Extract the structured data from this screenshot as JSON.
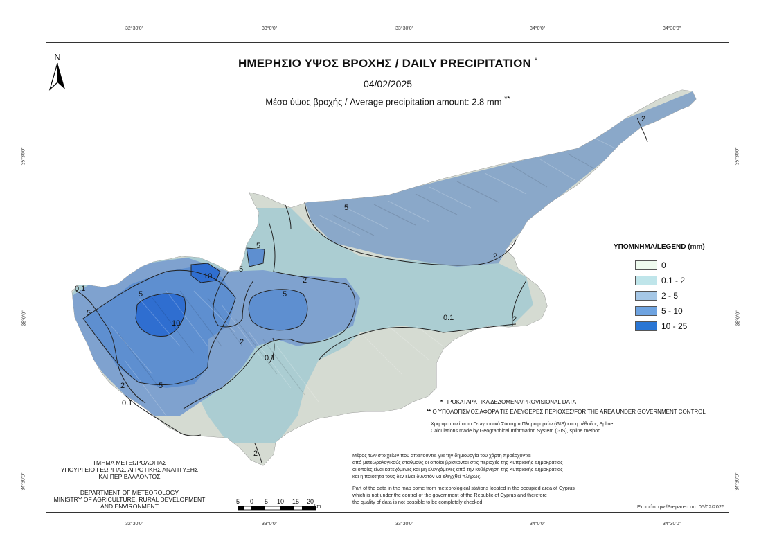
{
  "map": {
    "title": "ΗΜΕΡΗΣΙΟ ΥΨΟΣ ΒΡΟΧΗΣ / DAILY PRECIPITATION",
    "title_mark": "*",
    "date": "04/02/2025",
    "average": "Μέσο ύψος βροχής / Average precipitation amount: 2.8 mm",
    "average_mark": "**",
    "north_label": "N"
  },
  "ticks": {
    "top": [
      "32°30'0\"",
      "33°0'0\"",
      "33°30'0\"",
      "34°0'0\"",
      "34°30'0\""
    ],
    "bottom": [
      "32°30'0\"",
      "33°0'0\"",
      "33°30'0\"",
      "34°0'0\"",
      "34°30'0\""
    ],
    "left": [
      "35°30'0\"",
      "35°0'0\"",
      "34°30'0\""
    ],
    "right": [
      "35°30'0\"",
      "35°0'0\"",
      "34°30'0\""
    ]
  },
  "legend": {
    "title": "ΥΠΟΜΝΗΜΑ/LEGEND (mm)",
    "items": [
      {
        "label": "0",
        "color": "#eefaee"
      },
      {
        "label": "0.1 - 2",
        "color": "#bfe5ea"
      },
      {
        "label": "2 - 5",
        "color": "#a5c7e6"
      },
      {
        "label": "5 - 10",
        "color": "#6ea3e0"
      },
      {
        "label": "10 - 25",
        "color": "#2a76d4"
      }
    ]
  },
  "contour_labels": [
    "0.1",
    "0.1",
    "0.1",
    "0.1",
    "2",
    "2",
    "2",
    "2",
    "2",
    "2",
    "2",
    "5",
    "5",
    "5",
    "5",
    "5",
    "5",
    "5",
    "10",
    "10"
  ],
  "notes": {
    "provisional": "ΠΡΟΚΑΤΑΡΚΤΙΚΑ ΔΕΔΟΜΕΝΑ/PROVISIONAL DATA",
    "provisional_mark": "*",
    "area": "Ο ΥΠΟΛΟΓΙΣΜΟΣ ΑΦΟΡΑ ΤΙΣ ΕΛΕΥΘΕΡΕΣ ΠΕΡΙΟΧΕΣ/FOR THE AREA UNDER GOVERNMENT CONTROL",
    "area_mark": "**",
    "gis_gr": "Χρησιμοποιείται το Γεωγραφικό Σύστημα Πληροφοριών (GIS) και η μέθοδος Spline",
    "gis_en": "Calculations made by Geographical Information System (GIS), spline method",
    "part_gr": [
      "Μέρος των στοιχείων που απαιτούνται για την δημιουργία του χάρτη προέρχονται",
      "από μετεωρολογικούς σταθμούς οι οποίοι βρίσκονται στις περιοχές της Κυπριακής Δημοκρατίας",
      "οι οποίες είναι κατεχόμενες και μη ελεγχόμενες από την κυβέρνηση της Κυπριακής Δημοκρατίας",
      "και η ποιότητα τους δεν είναι δυνατόν να ελεγχθεί πλήρως."
    ],
    "part_en": [
      "Part of the data in the map come from meteorological stations located in the occupied area of Cyprus",
      "which is not under the control of the government of the Republic of Cyprus and therefore",
      "the quality of data is not possible to be completely checked."
    ]
  },
  "department": {
    "gr": [
      "ΤΜΗΜΑ ΜΕΤΕΩΡΟΛΟΓΙΑΣ",
      "ΥΠΟΥΡΓΕΙΟ ΓΕΩΡΓΙΑΣ, ΑΓΡΟΤΙΚΗΣ ΑΝΑΠΤΥΞΗΣ",
      "ΚΑΙ ΠΕΡΙΒΑΛΛΟΝΤΟΣ"
    ],
    "en": [
      "DEPARTMENT OF METEOROLOGY",
      "MINISTRY OF AGRICULTURE, RURAL DEVELOPMENT",
      "AND ENVIRONMENT"
    ]
  },
  "scale": {
    "labels": [
      "5",
      "0",
      "5",
      "10",
      "15",
      "20"
    ],
    "unit": "km"
  },
  "prepared": "Ετοιμάστηκε/Prepared on: 05/02/2025"
}
